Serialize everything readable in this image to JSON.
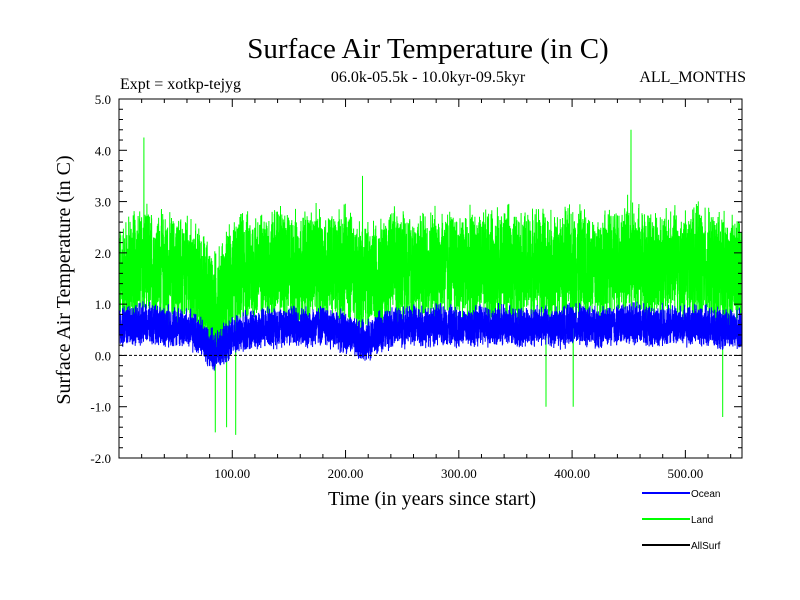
{
  "chart_data": {
    "type": "line",
    "title": "Surface Air Temperature (in C)",
    "subtitle_left": "Expt = xotkp-tejyg",
    "subtitle_center": "06.0k-05.5k - 10.0kyr-09.5kyr",
    "subtitle_right": "ALL_MONTHS",
    "xlabel": "Time (in years since start)",
    "ylabel": "Surface Air Temperature (in C)",
    "xlim": [
      0,
      550
    ],
    "ylim": [
      -2.0,
      5.0
    ],
    "xticks": [
      100,
      200,
      300,
      400,
      500
    ],
    "xtick_labels": [
      "100.00",
      "200.00",
      "300.00",
      "400.00",
      "500.00"
    ],
    "yticks": [
      -2.0,
      -1.0,
      0.0,
      1.0,
      2.0,
      3.0,
      4.0,
      5.0
    ],
    "ytick_labels": [
      "-2.0",
      "-1.0",
      "0.0",
      "1.0",
      "2.0",
      "3.0",
      "4.0",
      "5.0"
    ],
    "zero_line": 0.0,
    "series": [
      {
        "name": "Land",
        "color": "#00ff00",
        "x": [
          0,
          10,
          20,
          30,
          40,
          50,
          60,
          70,
          80,
          85,
          90,
          100,
          110,
          120,
          130,
          140,
          150,
          160,
          170,
          180,
          190,
          200,
          210,
          220,
          230,
          240,
          250,
          260,
          270,
          280,
          290,
          300,
          310,
          320,
          330,
          340,
          350,
          360,
          370,
          380,
          390,
          400,
          410,
          420,
          430,
          440,
          450,
          460,
          470,
          480,
          490,
          500,
          510,
          520,
          530,
          540,
          550
        ],
        "mean": [
          1.4,
          1.7,
          1.8,
          1.7,
          1.7,
          1.6,
          1.6,
          1.4,
          1.1,
          0.9,
          1.1,
          1.5,
          1.7,
          1.7,
          1.7,
          1.8,
          1.7,
          1.7,
          1.8,
          1.7,
          1.7,
          1.8,
          1.6,
          1.5,
          1.6,
          1.7,
          1.8,
          1.7,
          1.7,
          1.8,
          1.8,
          1.7,
          1.7,
          1.7,
          1.7,
          1.8,
          1.7,
          1.7,
          1.8,
          1.7,
          1.7,
          1.8,
          1.8,
          1.7,
          1.7,
          1.8,
          1.9,
          1.8,
          1.7,
          1.8,
          1.8,
          1.7,
          1.8,
          1.7,
          1.7,
          1.6,
          1.6
        ],
        "spread": 1.25,
        "extremes": [
          {
            "x": 22,
            "y": 4.25
          },
          {
            "x": 85,
            "y": -1.5
          },
          {
            "x": 95,
            "y": -1.4
          },
          {
            "x": 103,
            "y": -1.55
          },
          {
            "x": 452,
            "y": 4.4
          },
          {
            "x": 377,
            "y": -1.0
          },
          {
            "x": 401,
            "y": -1.0
          },
          {
            "x": 533,
            "y": -1.2
          },
          {
            "x": 215,
            "y": 3.5
          }
        ]
      },
      {
        "name": "Ocean",
        "color": "#0000ff",
        "x": [
          0,
          10,
          20,
          30,
          40,
          50,
          60,
          70,
          80,
          85,
          90,
          100,
          110,
          120,
          130,
          140,
          150,
          160,
          170,
          180,
          190,
          200,
          210,
          220,
          230,
          240,
          250,
          260,
          270,
          280,
          290,
          300,
          310,
          320,
          330,
          340,
          350,
          360,
          370,
          380,
          390,
          400,
          410,
          420,
          430,
          440,
          450,
          460,
          470,
          480,
          490,
          500,
          510,
          520,
          530,
          540,
          550
        ],
        "mean": [
          0.55,
          0.6,
          0.62,
          0.6,
          0.58,
          0.55,
          0.52,
          0.4,
          0.15,
          0.05,
          0.15,
          0.35,
          0.45,
          0.5,
          0.55,
          0.55,
          0.6,
          0.55,
          0.55,
          0.6,
          0.5,
          0.45,
          0.3,
          0.3,
          0.45,
          0.55,
          0.55,
          0.6,
          0.55,
          0.6,
          0.6,
          0.55,
          0.55,
          0.6,
          0.55,
          0.6,
          0.55,
          0.55,
          0.6,
          0.55,
          0.55,
          0.6,
          0.6,
          0.55,
          0.55,
          0.6,
          0.65,
          0.6,
          0.55,
          0.6,
          0.6,
          0.55,
          0.6,
          0.55,
          0.5,
          0.5,
          0.5
        ],
        "spread": 0.45
      },
      {
        "name": "AllSurf",
        "color": "#000000",
        "x": [
          0,
          550
        ],
        "mean": [
          0.0,
          0.0
        ],
        "spread": 0.0
      }
    ],
    "legend": {
      "placement": "bottom-right",
      "entries": [
        {
          "label": "Ocean",
          "color": "#0000ff"
        },
        {
          "label": "Land",
          "color": "#00ff00"
        },
        {
          "label": "AllSurf",
          "color": "#000000"
        }
      ]
    }
  }
}
